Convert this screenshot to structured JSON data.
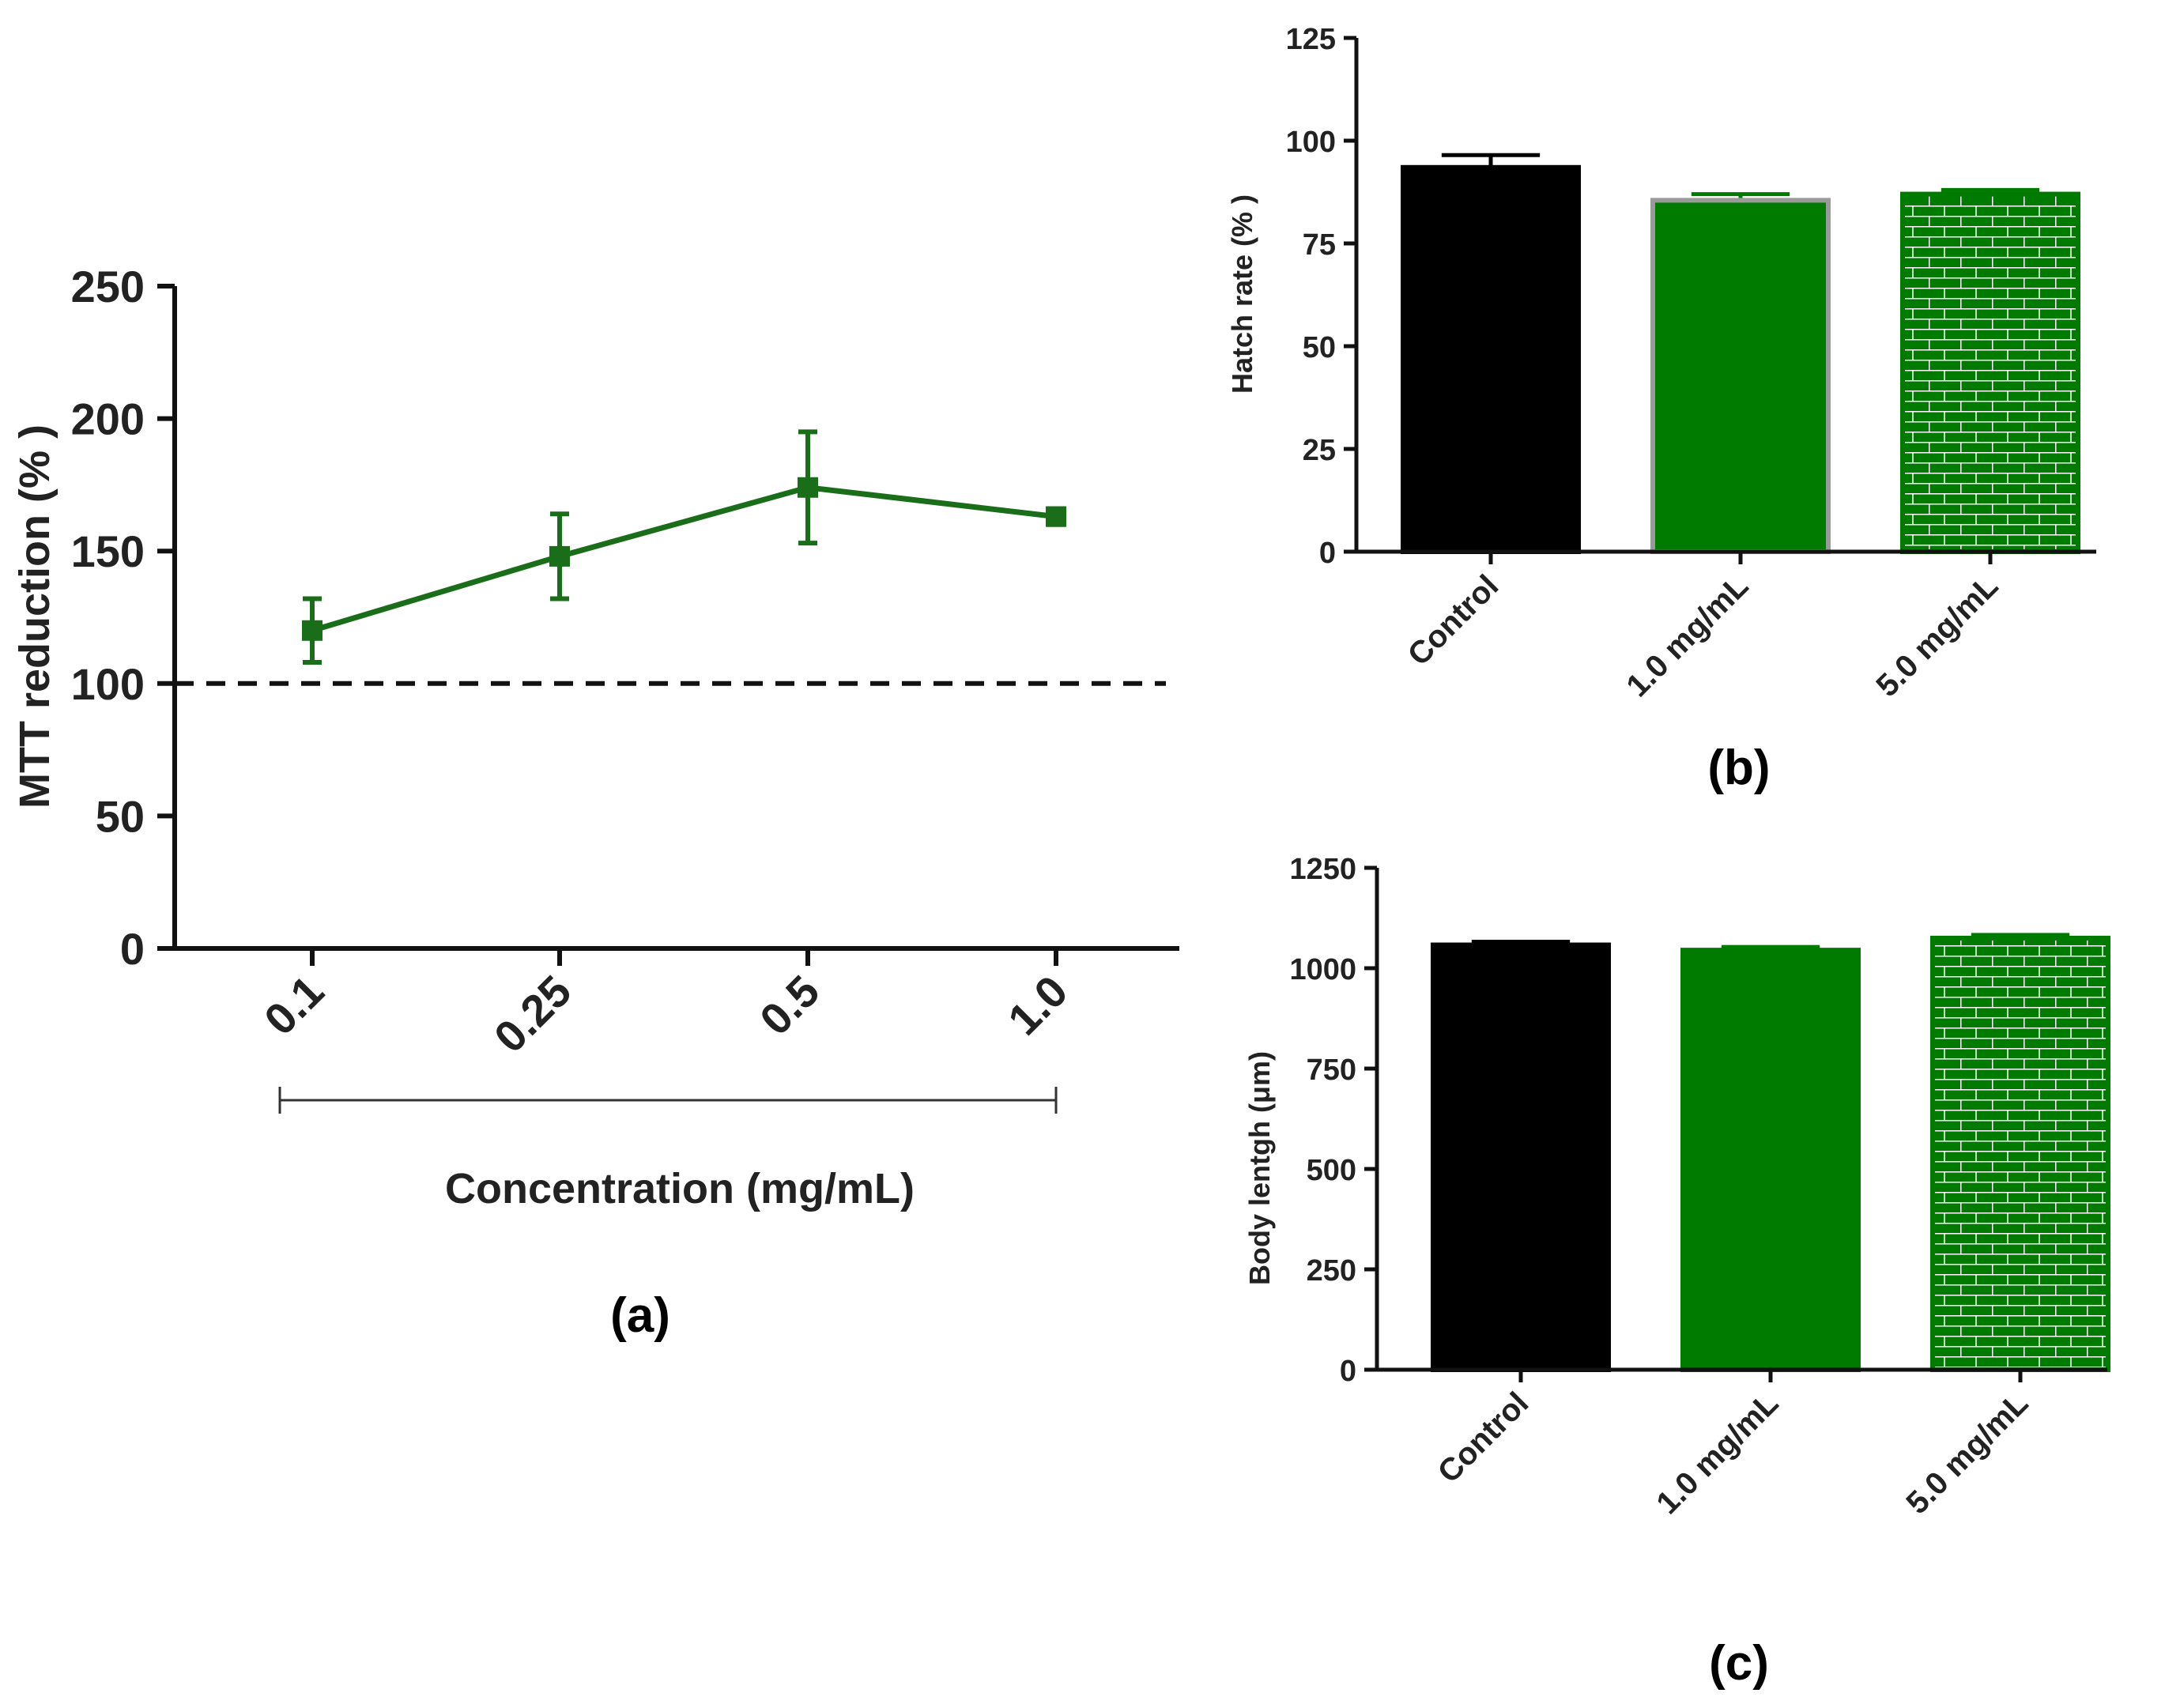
{
  "colors": {
    "green": "#007b00",
    "line_green": "#1a6e1a",
    "black": "#000000",
    "axis": "#111111",
    "brick_line": "#ffffff"
  },
  "chart_data": [
    {
      "id": "a",
      "type": "line",
      "panel_label": "(a)",
      "title": "",
      "xlabel": "Concentration (mg/mL)",
      "ylabel": "MTT reduction (% )",
      "categories": [
        "0.1",
        "0.25",
        "0.5",
        "1.0"
      ],
      "series": [
        {
          "name": "MTT reduction",
          "values": [
            120,
            148,
            174,
            163
          ],
          "errors": [
            12,
            16,
            21,
            3
          ]
        }
      ],
      "reference_line": {
        "y": 100,
        "style": "dashed"
      },
      "ylim": [
        0,
        250
      ],
      "yticks": [
        0,
        50,
        100,
        150,
        200,
        250
      ],
      "grid": false
    },
    {
      "id": "b",
      "type": "bar",
      "panel_label": "(b)",
      "title": "",
      "xlabel": "",
      "ylabel": "Hatch rate (% )",
      "categories": [
        "Control",
        "1.0 mg/mL",
        "5.0 mg/mL"
      ],
      "values": [
        93.5,
        85.5,
        87
      ],
      "errors": [
        3,
        1.5,
        1
      ],
      "fills": [
        "black",
        "green",
        "green-brick"
      ],
      "ylim": [
        0,
        125
      ],
      "yticks": [
        0,
        25,
        50,
        75,
        100,
        125
      ],
      "grid": false
    },
    {
      "id": "c",
      "type": "bar",
      "panel_label": "(c)",
      "title": "",
      "xlabel": "",
      "ylabel": "Body lentgh (μm)",
      "categories": [
        "Control",
        "1.0 mg/mL",
        "5.0 mg/mL"
      ],
      "values": [
        1058,
        1045,
        1075
      ],
      "errors": [
        8,
        8,
        8
      ],
      "fills": [
        "black",
        "green",
        "green-brick"
      ],
      "ylim": [
        0,
        1250
      ],
      "yticks": [
        0,
        250,
        500,
        750,
        1000,
        1250
      ],
      "grid": false
    }
  ]
}
